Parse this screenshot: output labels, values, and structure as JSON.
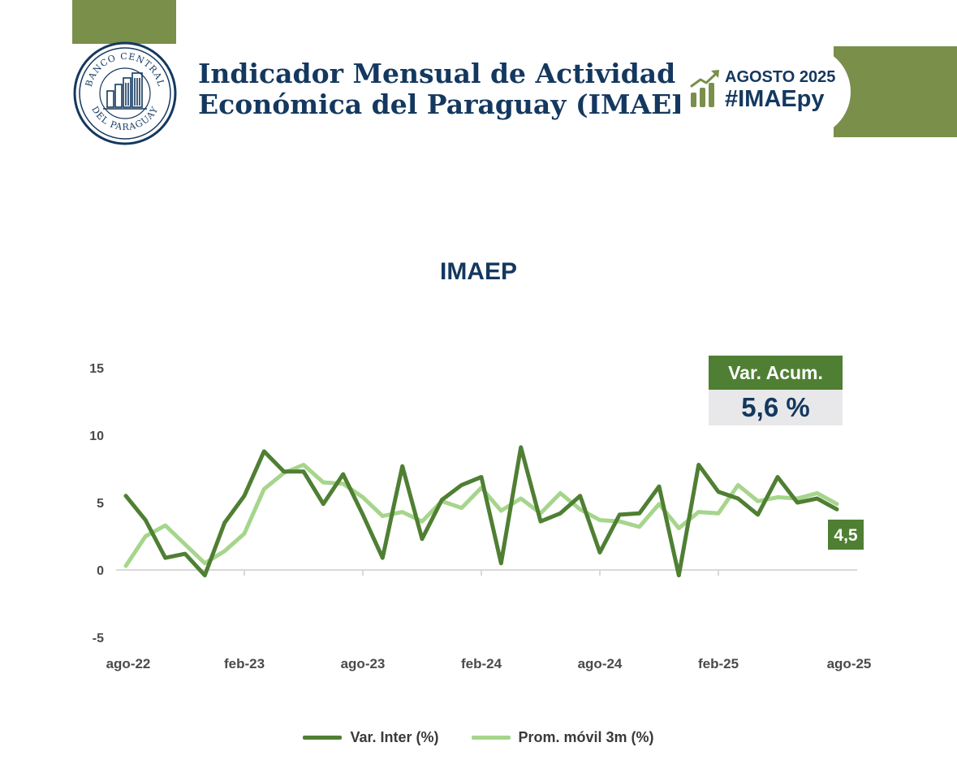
{
  "header": {
    "title_line1": "Indicador Mensual de Actividad",
    "title_line2": "Económica del Paraguay (IMAEP)",
    "seal_top_text": "BANCO CENTRAL",
    "seal_bottom_text": "DEL PARAGUAY"
  },
  "badge": {
    "month": "AGOSTO 2025",
    "hashtag": "#IMAEpy",
    "icon": "growth-chart-icon"
  },
  "colors": {
    "navy": "#14385f",
    "olive": "#7a8f4a",
    "dark_green": "#4f7f33",
    "light_green": "#a6d58c"
  },
  "summary": {
    "label": "Var. Acum.",
    "value": "5,6 %",
    "last_value_label": "4,5"
  },
  "chart_data": {
    "type": "line",
    "title": "IMAEP",
    "xlabel": "",
    "ylabel": "",
    "ylim": [
      -5,
      15
    ],
    "yticks": [
      15,
      10,
      5,
      0,
      -5
    ],
    "ytick_labels": [
      "15",
      "10",
      "5",
      "0",
      "-5"
    ],
    "xtick_labels": [
      "ago-22",
      "feb-23",
      "ago-23",
      "feb-24",
      "ago-24",
      "feb-25",
      "ago-25"
    ],
    "xtick_indices": [
      0,
      6,
      12,
      18,
      24,
      30,
      36
    ],
    "n_points": 37,
    "legend_position": "bottom",
    "series": [
      {
        "name": "Var. Inter (%)",
        "color": "#4f7f33",
        "values": [
          5.5,
          3.7,
          0.9,
          1.2,
          -0.4,
          3.5,
          5.5,
          8.8,
          7.3,
          7.3,
          4.9,
          7.1,
          4.1,
          0.9,
          7.7,
          2.3,
          5.2,
          6.3,
          6.9,
          0.5,
          9.1,
          3.6,
          4.2,
          5.5,
          1.3,
          4.1,
          4.2,
          6.2,
          -0.4,
          7.8,
          5.8,
          5.3,
          4.1,
          6.9,
          5.0,
          5.3,
          4.5
        ]
      },
      {
        "name": "Prom. móvil 3m (%)",
        "color": "#a6d58c",
        "values": [
          0.3,
          2.5,
          3.3,
          1.9,
          0.5,
          1.4,
          2.7,
          6.0,
          7.2,
          7.8,
          6.5,
          6.4,
          5.4,
          4.0,
          4.3,
          3.6,
          5.1,
          4.6,
          6.1,
          4.4,
          5.3,
          4.2,
          5.7,
          4.5,
          3.7,
          3.6,
          3.2,
          4.9,
          3.1,
          4.3,
          4.2,
          6.3,
          5.1,
          5.4,
          5.3,
          5.7,
          4.9
        ]
      }
    ]
  }
}
